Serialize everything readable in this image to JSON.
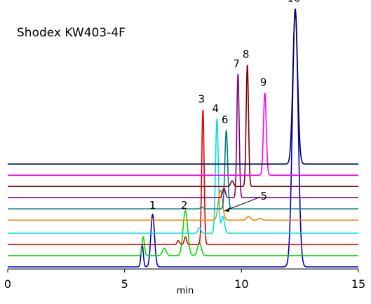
{
  "chart_data": {
    "type": "line",
    "title": "Shodex KW403-4F",
    "xlabel": "min",
    "ylabel": "",
    "xlim": [
      0,
      15
    ],
    "x_ticks": [
      "0",
      "5",
      "10",
      "15"
    ],
    "grid": false,
    "series": [
      {
        "color": "#0000c0",
        "baseline_y": 0.0,
        "peaks": [
          [
            5.75,
            0.12,
            0.05
          ],
          [
            6.2,
            0.28,
            0.08
          ],
          [
            12.3,
            1.38,
            0.12
          ]
        ],
        "peak_labels": [
          "10"
        ]
      },
      {
        "color": "#00dd00",
        "baseline_y": 0.06,
        "peaks": [
          [
            5.8,
            0.1,
            0.05
          ],
          [
            6.7,
            0.04,
            0.08
          ],
          [
            7.6,
            0.24,
            0.1
          ],
          [
            8.2,
            0.07,
            0.08
          ]
        ],
        "peak_labels": []
      },
      {
        "color": "#e00000",
        "baseline_y": 0.12,
        "peaks": [
          [
            7.3,
            0.02,
            0.05
          ],
          [
            7.6,
            0.04,
            0.05
          ],
          [
            8.35,
            0.72,
            0.05
          ]
        ],
        "peak_labels": [
          "3"
        ]
      },
      {
        "color": "#00e0e0",
        "baseline_y": 0.18,
        "peaks": [
          [
            8.2,
            0.03,
            0.06
          ],
          [
            8.95,
            0.61,
            0.06
          ],
          [
            9.2,
            0.09,
            0.07
          ]
        ],
        "peak_labels": [
          "4"
        ]
      },
      {
        "color": "#ff7f00",
        "baseline_y": 0.25,
        "peaks": [
          [
            9.1,
            0.16,
            0.09
          ],
          [
            10.3,
            0.02,
            0.08
          ],
          [
            10.8,
            0.01,
            0.08
          ]
        ],
        "peak_labels": []
      },
      {
        "color": "#008080",
        "baseline_y": 0.31,
        "peaks": [
          [
            8.3,
            0.01,
            0.06
          ],
          [
            9.35,
            0.42,
            0.06
          ]
        ],
        "peak_labels": [
          "6"
        ]
      },
      {
        "color": "#800080",
        "baseline_y": 0.37,
        "peaks": [
          [
            9.25,
            0.05,
            0.06
          ],
          [
            9.85,
            0.66,
            0.05
          ]
        ],
        "peak_labels": [
          "7"
        ]
      },
      {
        "color": "#800000",
        "baseline_y": 0.43,
        "peaks": [
          [
            9.6,
            0.03,
            0.06
          ],
          [
            10.25,
            0.65,
            0.05
          ]
        ],
        "peak_labels": [
          "8"
        ]
      },
      {
        "color": "#ff00ff",
        "baseline_y": 0.49,
        "peaks": [
          [
            11.0,
            0.44,
            0.06
          ]
        ],
        "peak_labels": [
          "9"
        ]
      },
      {
        "color": "#000060",
        "baseline_y": 0.55,
        "peaks": [
          [
            12.3,
            0.82,
            0.1
          ]
        ],
        "peak_labels": []
      }
    ],
    "annotations": [
      {
        "text": "1",
        "time": 6.2
      },
      {
        "text": "2",
        "time": 7.55
      },
      {
        "text": "5",
        "time": 9.1
      }
    ]
  }
}
